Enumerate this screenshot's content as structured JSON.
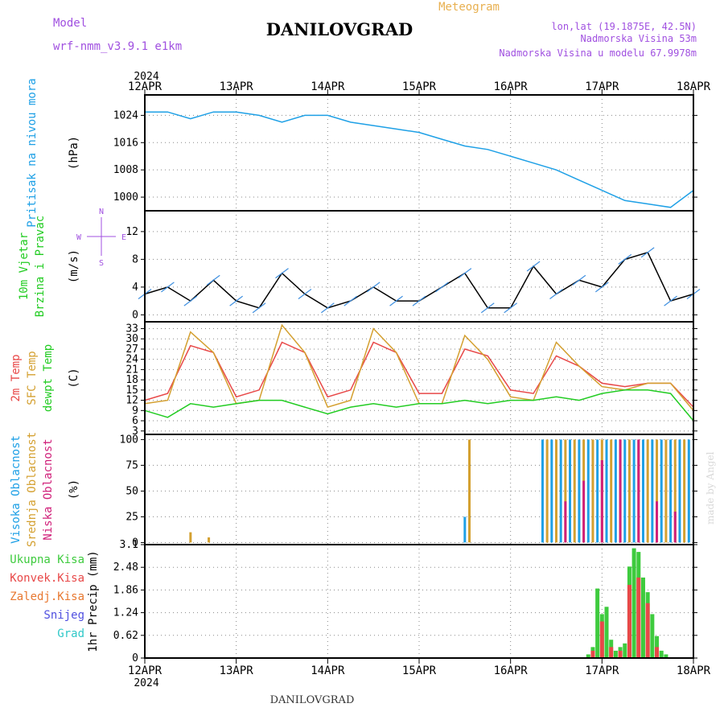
{
  "header": {
    "model_label": "Model",
    "model_value": "wrf-nmm_v3.9.1 e1km",
    "station": "DANILOVGRAD",
    "subtitle": "Meteogram",
    "lonlat": "lon,lat (19.1875E, 42.5N)",
    "elevation": "Nadmorska Visina 53m",
    "model_elevation": "Nadmorska Visina u modelu 67.9978m",
    "footer_station": "DANILOVGRAD",
    "credit": "made by Angel"
  },
  "colors": {
    "pressure": "#1ea0e6",
    "wind_label": "#22cc22",
    "temp2m": "#e84848",
    "sfc": "#d4a030",
    "dewpt": "#22cc22",
    "cloud_high": "#1ea0e6",
    "cloud_mid": "#d4a030",
    "cloud_low": "#d0207a",
    "precip_total": "#3ecb3e",
    "precip_conv": "#e84848",
    "precip_nonconv": "#e87830",
    "snow": "#5050e0",
    "hail": "#30c8c8",
    "header_purple": "#a050e0",
    "header_orange": "#e8b050"
  },
  "chart_data": {
    "type": "line",
    "x_ticks": [
      "12APR",
      "13APR",
      "14APR",
      "15APR",
      "16APR",
      "17APR",
      "18APR"
    ],
    "year_label": "2024",
    "panels": [
      {
        "id": "pressure",
        "labels": [
          "Pritisak na nivou mora"
        ],
        "unit": "(hPa)",
        "yticks": [
          "1000",
          "1008",
          "1016",
          "1024"
        ],
        "ylim": [
          996,
          1030
        ],
        "series": [
          {
            "key": "pressure",
            "x": [
              0,
              0.25,
              0.5,
              0.75,
              1,
              1.25,
              1.5,
              1.75,
              2,
              2.25,
              2.5,
              2.75,
              3,
              3.25,
              3.5,
              3.75,
              4,
              4.25,
              4.5,
              4.75,
              5,
              5.25,
              5.5,
              5.75,
              6
            ],
            "values": [
              1025,
              1025,
              1023,
              1025,
              1025,
              1024,
              1022,
              1024,
              1024,
              1022,
              1021,
              1020,
              1019,
              1017,
              1015,
              1014,
              1012,
              1010,
              1008,
              1005,
              1002,
              999,
              998,
              997,
              1002
            ]
          }
        ]
      },
      {
        "id": "wind",
        "labels": [
          "10m Vjetar",
          "Brzina i Pravac"
        ],
        "unit": "(m/s)",
        "yticks": [
          "0",
          "4",
          "8",
          "12"
        ],
        "ylim": [
          -1,
          15
        ],
        "compass": [
          "N",
          "S",
          "E",
          "W"
        ],
        "series": [
          {
            "key": "wind_speed",
            "x": [
              0,
              0.25,
              0.5,
              0.75,
              1,
              1.25,
              1.5,
              1.75,
              2,
              2.25,
              2.5,
              2.75,
              3,
              3.25,
              3.5,
              3.75,
              4,
              4.25,
              4.5,
              4.75,
              5,
              5.25,
              5.5,
              5.75,
              6
            ],
            "values": [
              3,
              4,
              2,
              5,
              2,
              1,
              6,
              3,
              1,
              2,
              4,
              2,
              2,
              4,
              6,
              1,
              1,
              7,
              3,
              5,
              4,
              8,
              9,
              2,
              3
            ]
          }
        ]
      },
      {
        "id": "temp",
        "labels": [
          "2m Temp",
          "SFC Temp",
          "dewpt Temp"
        ],
        "unit": "(C)",
        "yticks": [
          "3",
          "6",
          "9",
          "12",
          "15",
          "18",
          "21",
          "24",
          "27",
          "30",
          "33"
        ],
        "ylim": [
          2,
          35
        ],
        "series": [
          {
            "key": "temp2m",
            "x": [
              0,
              0.25,
              0.5,
              0.75,
              1,
              1.25,
              1.5,
              1.75,
              2,
              2.25,
              2.5,
              2.75,
              3,
              3.25,
              3.5,
              3.75,
              4,
              4.25,
              4.5,
              4.75,
              5,
              5.25,
              5.5,
              5.75,
              6
            ],
            "values": [
              12,
              14,
              28,
              26,
              13,
              15,
              29,
              26,
              13,
              15,
              29,
              26,
              14,
              14,
              27,
              25,
              15,
              14,
              25,
              22,
              17,
              16,
              17,
              17,
              10
            ]
          },
          {
            "key": "sfc",
            "x": [
              0,
              0.25,
              0.5,
              0.75,
              1,
              1.25,
              1.5,
              1.75,
              2,
              2.25,
              2.5,
              2.75,
              3,
              3.25,
              3.5,
              3.75,
              4,
              4.25,
              4.5,
              4.75,
              5,
              5.25,
              5.5,
              5.75,
              6
            ],
            "values": [
              11,
              12,
              32,
              26,
              11,
              12,
              34,
              26,
              10,
              12,
              33,
              26,
              11,
              11,
              31,
              24,
              13,
              12,
              29,
              22,
              16,
              15,
              17,
              17,
              9
            ]
          },
          {
            "key": "dewpt",
            "x": [
              0,
              0.25,
              0.5,
              0.75,
              1,
              1.25,
              1.5,
              1.75,
              2,
              2.25,
              2.5,
              2.75,
              3,
              3.25,
              3.5,
              3.75,
              4,
              4.25,
              4.5,
              4.75,
              5,
              5.25,
              5.5,
              5.75,
              6
            ],
            "values": [
              9,
              7,
              11,
              10,
              11,
              12,
              12,
              10,
              8,
              10,
              11,
              10,
              11,
              11,
              12,
              11,
              12,
              12,
              13,
              12,
              14,
              15,
              15,
              14,
              6
            ]
          }
        ]
      },
      {
        "id": "clouds",
        "labels": [
          "Visoka Oblacnost",
          "Srednja Oblacnost",
          "Niska Oblacnost"
        ],
        "unit": "(%)",
        "yticks": [
          "0",
          "25",
          "50",
          "75",
          "100"
        ],
        "ylim": [
          -2,
          105
        ],
        "series": [
          {
            "key": "cloud_high",
            "x": [
              3.5,
              4.35,
              4.45,
              4.55,
              4.65,
              4.75,
              4.85,
              4.95,
              5.05,
              5.15,
              5.25,
              5.35,
              5.45,
              5.55,
              5.65,
              5.75,
              5.85,
              5.95
            ],
            "values": [
              25,
              100,
              100,
              100,
              100,
              100,
              100,
              100,
              100,
              100,
              100,
              100,
              100,
              100,
              100,
              100,
              100,
              100
            ]
          },
          {
            "key": "cloud_mid",
            "x": [
              0.5,
              0.7,
              3.55,
              4.4,
              4.5,
              4.6,
              4.7,
              4.8,
              4.9,
              5.0,
              5.1,
              5.2,
              5.3,
              5.4,
              5.5,
              5.6,
              5.7,
              5.8,
              5.9
            ],
            "values": [
              10,
              5,
              100,
              100,
              100,
              100,
              100,
              100,
              100,
              100,
              100,
              100,
              100,
              100,
              100,
              100,
              100,
              100,
              100
            ]
          },
          {
            "key": "cloud_low",
            "x": [
              4.6,
              4.8,
              5.0,
              5.2,
              5.4,
              5.6,
              5.8
            ],
            "values": [
              40,
              60,
              80,
              100,
              100,
              40,
              30
            ]
          }
        ]
      },
      {
        "id": "precip",
        "labels": [
          "Ukupna Kisa",
          "Konvek.Kisa",
          "Zaledj.Kisa",
          "Snijeg",
          "Grad"
        ],
        "unit": "1hr Precip (mm)",
        "yticks": [
          "0",
          "0.62",
          "1.24",
          "1.86",
          "2.48",
          "3.1"
        ],
        "ylim": [
          0,
          3.1
        ],
        "series": [
          {
            "key": "precip_total",
            "x": [
              4.85,
              4.9,
              4.95,
              5.0,
              5.05,
              5.1,
              5.15,
              5.2,
              5.25,
              5.3,
              5.35,
              5.4,
              5.45,
              5.5,
              5.55,
              5.6,
              5.65,
              5.7
            ],
            "values": [
              0.1,
              0.3,
              1.9,
              1.2,
              1.4,
              0.5,
              0.2,
              0.3,
              0.4,
              2.5,
              3.0,
              2.9,
              2.2,
              1.8,
              1.2,
              0.6,
              0.2,
              0.1
            ]
          },
          {
            "key": "precip_conv",
            "x": [
              4.9,
              5.0,
              5.1,
              5.2,
              5.3,
              5.4,
              5.5,
              5.6
            ],
            "values": [
              0.2,
              1.0,
              0.3,
              0.2,
              2.0,
              2.2,
              1.5,
              0.3
            ]
          }
        ]
      }
    ]
  }
}
